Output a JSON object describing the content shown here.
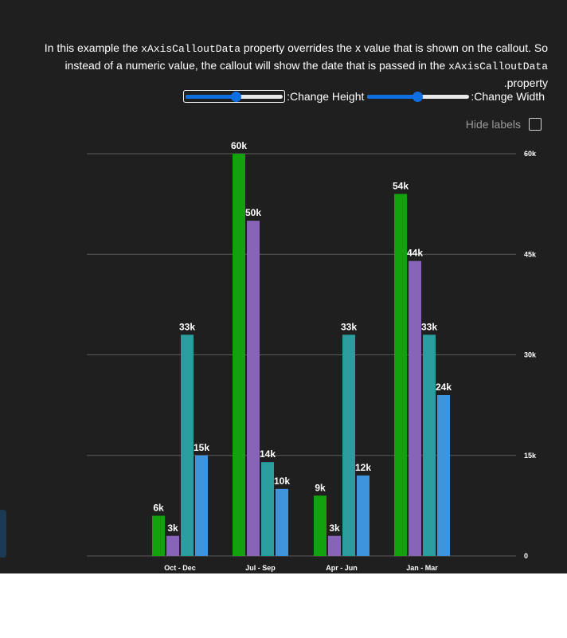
{
  "description": {
    "p1": "In this example the ",
    "code1": "xAxisCalloutData",
    "p2": " property overrides the x value that is shown on the callout. So instead of a numeric value, the callout will show the date that is passed in the ",
    "code2": "xAxisCalloutData",
    "p3": " .property"
  },
  "controls": {
    "height_label": ":Change Height",
    "width_label": ":Change Width",
    "height_value": 0.5,
    "width_value": 0.5
  },
  "hide_labels": {
    "label": "Hide labels",
    "checked": false
  },
  "colors": {
    "background": "#1f1f1f",
    "gridline": "#5a5a5a",
    "series1": "#13a10e",
    "series2": "#8764b8",
    "series3": "#2a9d9f",
    "series4": "#3e95de",
    "accent": "#0f6fe0"
  },
  "chart_data": {
    "type": "bar",
    "categories": [
      "Oct - Dec",
      "Jul - Sep",
      "Apr - Jun",
      "Jan - Mar"
    ],
    "series": [
      {
        "values": [
          6000,
          60000,
          9000,
          54000
        ],
        "labels": [
          "6k",
          "60k",
          "9k",
          "54k"
        ]
      },
      {
        "values": [
          3000,
          50000,
          3000,
          44000
        ],
        "labels": [
          "3k",
          "50k",
          "3k",
          "44k"
        ]
      },
      {
        "values": [
          33000,
          14000,
          33000,
          33000
        ],
        "labels": [
          "33k",
          "14k",
          "33k",
          "33k"
        ]
      },
      {
        "values": [
          15000,
          10000,
          12000,
          24000
        ],
        "labels": [
          "15k",
          "10k",
          "12k",
          "24k"
        ]
      }
    ],
    "ylim": [
      0,
      60000
    ],
    "yticks": [
      0,
      15000,
      30000,
      45000,
      60000
    ],
    "ytick_labels": [
      "0",
      "15k",
      "30k",
      "45k",
      "60k"
    ],
    "y_axis_position": "right",
    "grid": true,
    "legend": "none"
  }
}
